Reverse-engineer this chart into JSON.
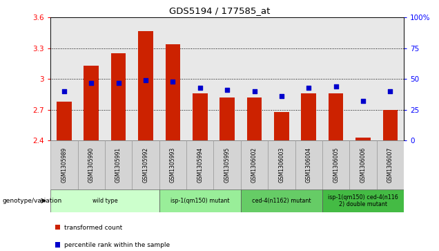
{
  "title": "GDS5194 / 177585_at",
  "samples": [
    "GSM1305989",
    "GSM1305990",
    "GSM1305991",
    "GSM1305992",
    "GSM1305993",
    "GSM1305994",
    "GSM1305995",
    "GSM1306002",
    "GSM1306003",
    "GSM1306004",
    "GSM1306005",
    "GSM1306006",
    "GSM1306007"
  ],
  "bar_values": [
    2.78,
    3.13,
    3.25,
    3.47,
    3.34,
    2.86,
    2.82,
    2.82,
    2.68,
    2.86,
    2.86,
    2.43,
    2.7
  ],
  "dot_values": [
    40,
    47,
    47,
    49,
    48,
    43,
    41,
    40,
    36,
    43,
    44,
    32,
    40
  ],
  "ymin": 2.4,
  "ymax": 3.6,
  "yticks": [
    2.4,
    2.7,
    3.0,
    3.3,
    3.6
  ],
  "ytick_labels": [
    "2.4",
    "2.7",
    "3",
    "3.3",
    "3.6"
  ],
  "right_yticks": [
    0,
    25,
    50,
    75,
    100
  ],
  "right_ytick_labels": [
    "0",
    "25",
    "50",
    "75",
    "100%"
  ],
  "bar_color": "#cc2200",
  "dot_color": "#0000cc",
  "plot_bg_color": "#e8e8e8",
  "groups": [
    {
      "label": "wild type",
      "start": 0,
      "end": 3,
      "color": "#ccffcc"
    },
    {
      "label": "isp-1(qm150) mutant",
      "start": 4,
      "end": 6,
      "color": "#aaffaa"
    },
    {
      "label": "ced-4(n1162) mutant",
      "start": 7,
      "end": 9,
      "color": "#66cc66"
    },
    {
      "label": "isp-1(qm150) ced-4(n116\n2) double mutant",
      "start": 10,
      "end": 12,
      "color": "#44bb44"
    }
  ],
  "genotype_label": "genotype/variation",
  "legend_items": [
    {
      "label": "transformed count",
      "color": "#cc2200"
    },
    {
      "label": "percentile rank within the sample",
      "color": "#0000cc"
    }
  ]
}
